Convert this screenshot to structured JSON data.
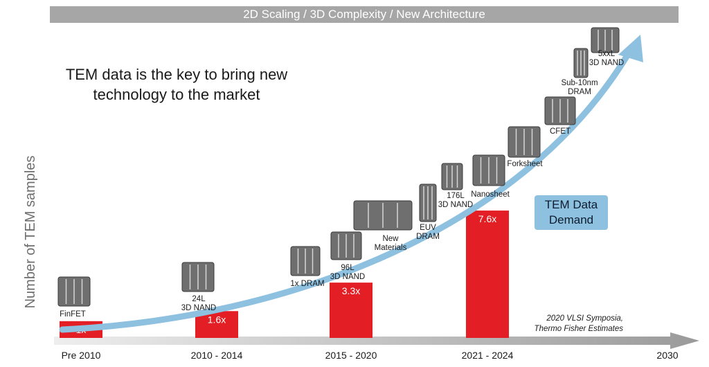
{
  "banner": "2D Scaling / 3D Complexity / New Architecture",
  "headline": [
    "TEM data is the key to bring new",
    "technology to the market"
  ],
  "demand_label": [
    "TEM Data",
    "Demand"
  ],
  "source": [
    "2020 VLSI Symposia,",
    "Thermo Fisher Estimates"
  ],
  "colors": {
    "bar": "#e31e24",
    "arrow": "#8ec0e0",
    "banner": "#a6a6a6",
    "axis": "#c8c8c8"
  },
  "chart_data": {
    "type": "bar",
    "ylabel": "Number of TEM samples",
    "categories": [
      "Pre 2010",
      "2010 - 2014",
      "2015 - 2020",
      "2021 - 2024"
    ],
    "axis_end_label": "2030",
    "values": [
      1,
      1.6,
      3.3,
      7.6
    ],
    "value_labels": [
      "1x",
      "1.6x",
      "3.3x",
      "7.6x"
    ],
    "ylim": [
      0,
      8
    ],
    "grid": false,
    "technologies": [
      {
        "label": [
          "FinFET"
        ]
      },
      {
        "label": [
          "24L",
          "3D NAND"
        ]
      },
      {
        "label": [
          "1x DRAM"
        ]
      },
      {
        "label": [
          "96L",
          "3D NAND"
        ]
      },
      {
        "label": [
          "New",
          "Materials"
        ]
      },
      {
        "label": [
          "EUV",
          "DRAM"
        ]
      },
      {
        "label": [
          "176L",
          "3D NAND"
        ]
      },
      {
        "label": [
          "Nanosheet"
        ]
      },
      {
        "label": [
          "Forksheet"
        ]
      },
      {
        "label": [
          "CFET"
        ]
      },
      {
        "label": [
          "Sub-10nm",
          "DRAM"
        ]
      },
      {
        "label": [
          "5xxL",
          "3D NAND"
        ]
      }
    ]
  }
}
